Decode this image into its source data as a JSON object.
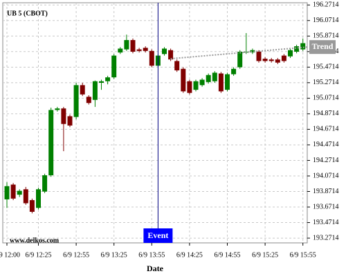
{
  "chart_data": {
    "type": "candlestick",
    "title": "UB 5 (CBOT)",
    "watermark": "www.delkos.com",
    "x_label": "Date",
    "categories": [
      "6/9 12:00",
      null,
      null,
      null,
      null,
      "6/9 12:25",
      null,
      null,
      null,
      null,
      null,
      "6/9 12:55",
      null,
      null,
      null,
      null,
      null,
      "6/9 13:25",
      null,
      null,
      null,
      null,
      null,
      "6/9 13:55",
      null,
      null,
      null,
      null,
      null,
      "6/9 14:25",
      null,
      null,
      null,
      null,
      null,
      "6/9 14:55",
      null,
      null,
      null,
      null,
      null,
      "6/9 15:25",
      null,
      null,
      null,
      null,
      null,
      "6/9 15:55"
    ],
    "open": [
      193.77,
      193.96,
      193.83,
      193.9,
      193.76,
      193.66,
      193.87,
      194.08,
      194.92,
      194.94,
      194.84,
      194.83,
      195.24,
      195.09,
      195.05,
      195.27,
      195.29,
      195.34,
      195.66,
      195.7,
      195.82,
      195.7,
      195.72,
      195.68,
      195.49,
      195.64,
      195.69,
      195.55,
      195.45,
      195.29,
      195.18,
      195.24,
      195.28,
      195.29,
      195.39,
      195.18,
      195.38,
      195.47,
      195.66,
      195.66,
      195.67,
      195.58,
      195.57,
      195.57,
      195.62,
      195.61,
      195.67,
      195.7
    ],
    "high": [
      193.99,
      193.98,
      193.9,
      193.93,
      193.78,
      193.92,
      194.1,
      194.95,
      194.96,
      194.96,
      194.86,
      195.27,
      195.27,
      195.11,
      195.3,
      195.31,
      195.36,
      195.64,
      195.73,
      195.89,
      195.84,
      195.72,
      195.74,
      195.7,
      195.64,
      195.73,
      195.71,
      195.57,
      195.47,
      195.31,
      195.31,
      195.33,
      195.39,
      195.42,
      195.41,
      195.4,
      195.47,
      195.69,
      195.91,
      195.71,
      195.69,
      195.6,
      195.59,
      195.59,
      195.64,
      195.71,
      195.76,
      195.84
    ],
    "low": [
      193.66,
      193.76,
      193.8,
      193.7,
      193.59,
      193.64,
      193.85,
      194.06,
      194.9,
      194.39,
      194.7,
      194.8,
      195.1,
      194.99,
      194.96,
      195.18,
      195.25,
      195.32,
      195.64,
      195.68,
      195.65,
      195.66,
      195.66,
      195.47,
      195.47,
      195.62,
      195.55,
      195.41,
      195.14,
      195.12,
      195.16,
      195.22,
      195.26,
      195.27,
      195.14,
      195.16,
      195.36,
      195.45,
      195.64,
      195.64,
      195.53,
      195.53,
      195.53,
      195.51,
      195.53,
      195.59,
      195.65,
      195.68
    ],
    "close": [
      193.94,
      193.78,
      193.88,
      193.72,
      193.61,
      193.9,
      194.08,
      194.92,
      194.94,
      194.74,
      194.72,
      195.24,
      195.12,
      195.01,
      195.29,
      195.29,
      195.34,
      195.62,
      195.71,
      195.82,
      195.67,
      195.68,
      195.68,
      195.49,
      195.62,
      195.71,
      195.57,
      195.43,
      195.16,
      195.14,
      195.29,
      195.31,
      195.37,
      195.4,
      195.16,
      195.38,
      195.45,
      195.67,
      195.67,
      195.69,
      195.55,
      195.55,
      195.55,
      195.53,
      195.55,
      195.69,
      195.74,
      195.78
    ],
    "up_color": "#008000",
    "down_color": "#800000",
    "ylim": [
      193.21,
      196.3
    ],
    "yticks": [
      193.2714,
      193.4714,
      193.6714,
      193.8714,
      194.0714,
      194.2714,
      194.4714,
      194.6714,
      194.8714,
      195.0714,
      195.2714,
      195.4714,
      195.6714,
      195.8714,
      196.0714,
      196.2714
    ],
    "grid": true,
    "trend": {
      "label": "Trend",
      "index": [
        26,
        47
      ],
      "values": [
        195.58,
        195.73
      ],
      "color": "#999999"
    },
    "event": {
      "label": "Event",
      "index": 24,
      "color": "#0000ff"
    }
  }
}
